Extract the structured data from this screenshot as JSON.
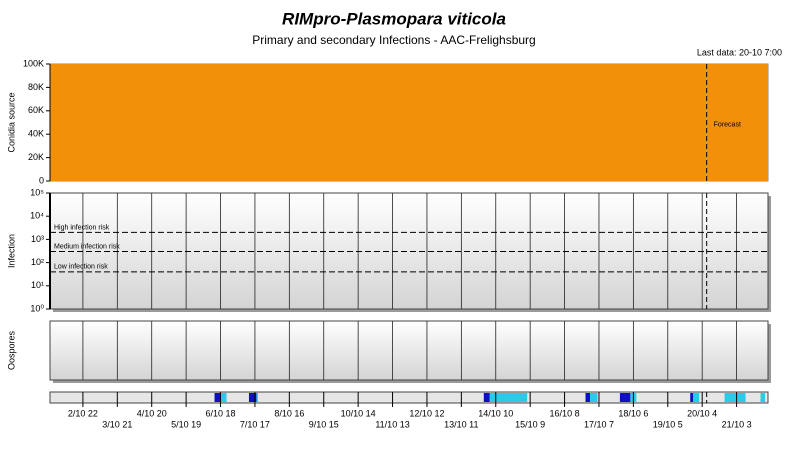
{
  "title": "RIMpro-Plasmopara viticola",
  "subtitle": "Primary and secondary Infections - AAC-Frelighsburg",
  "last_data": "Last data: 20-10 7:00",
  "chart_data": [
    {
      "type": "area",
      "ylabel": "Conidia source",
      "x": [
        0,
        480
      ],
      "values": [
        100000,
        100000
      ],
      "color": "#f39009",
      "ylim": [
        0,
        100000
      ],
      "yticks": [
        0,
        {
          "value": 20000,
          "label": "20K"
        },
        {
          "value": 40000,
          "label": "40K"
        },
        {
          "value": 60000,
          "label": "60K"
        },
        {
          "value": 80000,
          "label": "80K"
        },
        {
          "value": 100000,
          "label": "100K"
        }
      ],
      "forecast": 439,
      "forecast_label": "Forecast"
    },
    {
      "type": "threshold",
      "ylabel": "Infection",
      "log_scale": true,
      "ylim": [
        1,
        100000
      ],
      "yticks": [
        {
          "value": 1,
          "label": "10⁰"
        },
        {
          "value": 10,
          "label": "10¹"
        },
        {
          "value": 100,
          "label": "10²"
        },
        {
          "value": 1000,
          "label": "10³"
        },
        {
          "value": 10000,
          "label": "10⁴"
        },
        {
          "value": 100000,
          "label": "10⁵"
        }
      ],
      "thresholds": [
        {
          "label": "High infection risk",
          "value": 2000
        },
        {
          "label": "Medium infection risk",
          "value": 300
        },
        {
          "label": "Low infection risk",
          "value": 40
        }
      ],
      "grid": true
    },
    {
      "type": "empty",
      "ylabel": "Oospores",
      "grid": true
    },
    {
      "type": "strip",
      "xlim": [
        0,
        480
      ],
      "xticks": [
        {
          "value": 22,
          "label": "2/10 22"
        },
        {
          "value": 45,
          "label": "3/10 21"
        },
        {
          "value": 68,
          "label": "4/10 20"
        },
        {
          "value": 91,
          "label": "5/10 19"
        },
        {
          "value": 114,
          "label": "6/10 18"
        },
        {
          "value": 137,
          "label": "7/10 17"
        },
        {
          "value": 160,
          "label": "8/10 16"
        },
        {
          "value": 183,
          "label": "9/10 15"
        },
        {
          "value": 206,
          "label": "10/10 14"
        },
        {
          "value": 229,
          "label": "11/10 13"
        },
        {
          "value": 252,
          "label": "12/10 12"
        },
        {
          "value": 275,
          "label": "13/10 11"
        },
        {
          "value": 298,
          "label": "14/10 10"
        },
        {
          "value": 321,
          "label": "15/10 9"
        },
        {
          "value": 344,
          "label": "16/10 8"
        },
        {
          "value": 367,
          "label": "17/10 7"
        },
        {
          "value": 390,
          "label": "18/10 6"
        },
        {
          "value": 413,
          "label": "19/10 5"
        },
        {
          "value": 436,
          "label": "20/10 4"
        },
        {
          "value": 459,
          "label": "21/10 3"
        }
      ],
      "periods": [
        {
          "start": 110,
          "end": 114,
          "color": "#1010c0"
        },
        {
          "start": 114,
          "end": 118,
          "color": "#30c8e8"
        },
        {
          "start": 133,
          "end": 138,
          "color": "#1010c0"
        },
        {
          "start": 138,
          "end": 139,
          "color": "#30c8e8"
        },
        {
          "start": 290,
          "end": 294,
          "color": "#1010c0"
        },
        {
          "start": 294,
          "end": 319,
          "color": "#30c8e8"
        },
        {
          "start": 358,
          "end": 361,
          "color": "#1010c0"
        },
        {
          "start": 361,
          "end": 366,
          "color": "#30c8e8"
        },
        {
          "start": 381,
          "end": 388,
          "color": "#1010c0"
        },
        {
          "start": 388,
          "end": 392,
          "color": "#30c8e8"
        },
        {
          "start": 428,
          "end": 430,
          "color": "#1010c0"
        },
        {
          "start": 430,
          "end": 434,
          "color": "#30c8e8"
        },
        {
          "start": 451,
          "end": 465,
          "color": "#30c8e8"
        },
        {
          "start": 475,
          "end": 478,
          "color": "#30c8e8"
        }
      ],
      "color": "#e6e6e6"
    }
  ]
}
